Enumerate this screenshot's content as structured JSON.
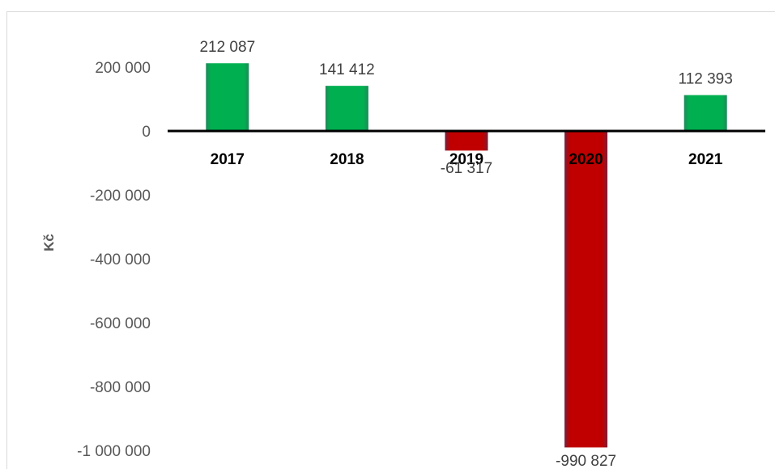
{
  "chart_data": {
    "type": "bar",
    "title": "",
    "xlabel": "",
    "ylabel": "Kč",
    "categories": [
      "2017",
      "2018",
      "2019",
      "2020",
      "2021"
    ],
    "values": [
      212087,
      141412,
      -61317,
      -990827,
      112393
    ],
    "data_labels": [
      "212 087",
      "141 412",
      "-61 317",
      "-990 827",
      "112 393"
    ],
    "yticks": [
      200000,
      0,
      -200000,
      -400000,
      -600000,
      -800000,
      -1000000
    ],
    "ytick_labels": [
      "200 000",
      "0",
      "-200 000",
      "-400 000",
      "-600 000",
      "-800 000",
      "-1 000 000"
    ],
    "ylim": [
      -1000000,
      200000
    ],
    "grid": false,
    "legend": "none",
    "colors": {
      "positive": "#00b050",
      "negative": "#c00000",
      "axis": "#000000"
    }
  }
}
